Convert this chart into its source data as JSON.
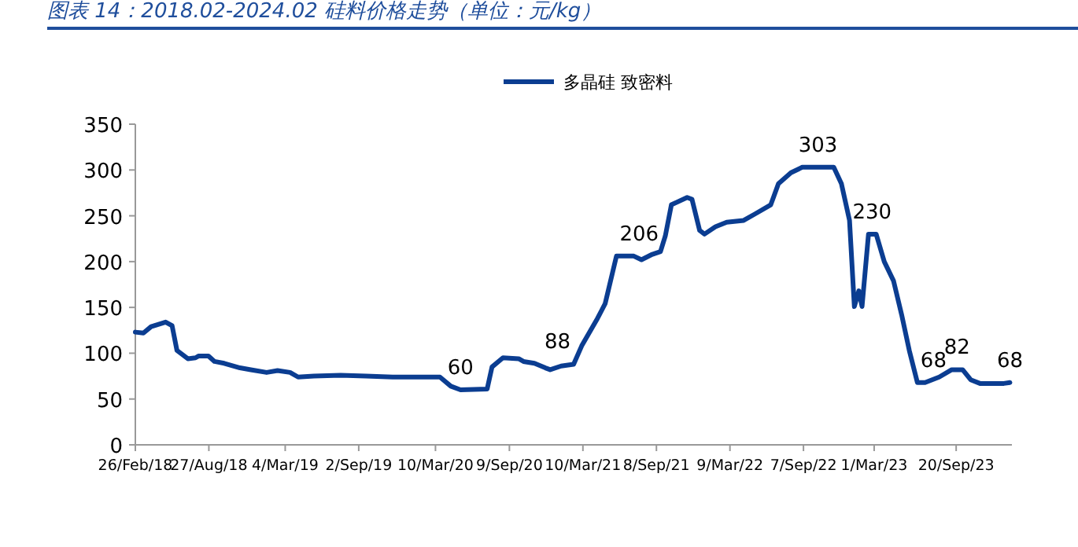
{
  "chart_data": {
    "type": "line",
    "title": "图表 14：2018.02-2024.02 硅料价格走势（单位：元/kg）",
    "legend": "top",
    "grid": false,
    "xlim": [
      "2018-02-26",
      "2024-02-05"
    ],
    "xticks": [
      {
        "value": "2018-02-26",
        "label": "26/Feb/18"
      },
      {
        "value": "2018-08-27",
        "label": "27/Aug/18"
      },
      {
        "value": "2019-03-04",
        "label": "4/Mar/19"
      },
      {
        "value": "2019-09-02",
        "label": "2/Sep/19"
      },
      {
        "value": "2020-03-10",
        "label": "10/Mar/20"
      },
      {
        "value": "2020-09-09",
        "label": "9/Sep/20"
      },
      {
        "value": "2021-03-10",
        "label": "10/Mar/21"
      },
      {
        "value": "2021-09-08",
        "label": "8/Sep/21"
      },
      {
        "value": "2022-03-09",
        "label": "9/Mar/22"
      },
      {
        "value": "2022-09-07",
        "label": "7/Sep/22"
      },
      {
        "value": "2023-03-01",
        "label": "1/Mar/23"
      },
      {
        "value": "2023-09-20",
        "label": "20/Sep/23"
      }
    ],
    "ylim": [
      0,
      350
    ],
    "yticks": [
      0,
      50,
      100,
      150,
      200,
      250,
      300,
      350
    ],
    "series": [
      {
        "name": "多晶硅 致密料",
        "color": "#0b3d91",
        "x": [
          "2018-02-26",
          "2018-03-18",
          "2018-04-06",
          "2018-05-12",
          "2018-05-28",
          "2018-06-09",
          "2018-07-06",
          "2018-07-25",
          "2018-08-02",
          "2018-08-26",
          "2018-09-10",
          "2018-10-04",
          "2018-11-12",
          "2018-12-09",
          "2019-01-17",
          "2019-02-13",
          "2019-03-16",
          "2019-04-05",
          "2019-05-14",
          "2019-07-19",
          "2019-09-20",
          "2019-11-25",
          "2020-03-21",
          "2020-04-17",
          "2020-05-11",
          "2020-07-16",
          "2020-07-28",
          "2020-08-24",
          "2020-10-02",
          "2020-10-14",
          "2020-11-10",
          "2020-12-07",
          "2020-12-19",
          "2021-01-15",
          "2021-02-15",
          "2021-03-07",
          "2021-04-15",
          "2021-05-04",
          "2021-06-01",
          "2021-07-14",
          "2021-08-02",
          "2021-08-29",
          "2021-09-18",
          "2021-09-30",
          "2021-10-15",
          "2021-11-23",
          "2021-12-05",
          "2021-12-24",
          "2022-01-05",
          "2022-02-01",
          "2022-03-01",
          "2022-04-12",
          "2022-05-10",
          "2022-06-18",
          "2022-07-07",
          "2022-08-07",
          "2022-09-04",
          "2022-11-21",
          "2022-12-10",
          "2022-12-30",
          "2023-01-11",
          "2023-01-22",
          "2023-01-30",
          "2023-02-15",
          "2023-03-06",
          "2023-03-26",
          "2023-04-18",
          "2023-05-08",
          "2023-05-27",
          "2023-06-16",
          "2023-07-05",
          "2023-08-09",
          "2023-09-09",
          "2023-10-06",
          "2023-10-26",
          "2023-11-18",
          "2024-01-16",
          "2024-01-31"
        ],
        "values": [
          123,
          122,
          129,
          134,
          130,
          103,
          94,
          95,
          97,
          97,
          91,
          89,
          84,
          82,
          79,
          81,
          79,
          74,
          75,
          76,
          75,
          74,
          74,
          64,
          60,
          61,
          85,
          95,
          94,
          91,
          89,
          84,
          82,
          86,
          88,
          108,
          138,
          154,
          206,
          206,
          202,
          208,
          211,
          228,
          262,
          270,
          268,
          234,
          230,
          238,
          243,
          245,
          252,
          262,
          285,
          297,
          303,
          303,
          285,
          245,
          151,
          168,
          151,
          230,
          230,
          200,
          179,
          142,
          103,
          68,
          68,
          74,
          82,
          82,
          71,
          67,
          67,
          68
        ]
      }
    ],
    "annotations": [
      {
        "text": "60",
        "x": "2020-05-11",
        "y": 60
      },
      {
        "text": "88",
        "x": "2021-02-15",
        "y": 88
      },
      {
        "text": "206",
        "x": "2021-06-01",
        "y": 206
      },
      {
        "text": "303",
        "x": "2022-10-13",
        "y": 303
      },
      {
        "text": "230",
        "x": "2023-02-24",
        "y": 230
      },
      {
        "text": "68",
        "x": "2023-06-16",
        "y": 68
      },
      {
        "text": "82",
        "x": "2023-09-22",
        "y": 82
      },
      {
        "text": "68",
        "x": "2024-01-31",
        "y": 68
      }
    ]
  }
}
